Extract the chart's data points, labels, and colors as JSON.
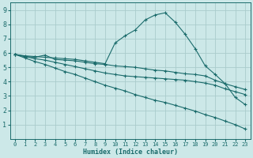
{
  "xlabel": "Humidex (Indice chaleur)",
  "bg_color": "#cce8e8",
  "grid_color": "#aacccc",
  "line_color": "#1a6b6b",
  "xlim": [
    -0.5,
    23.5
  ],
  "ylim": [
    0,
    9.5
  ],
  "xticks": [
    0,
    1,
    2,
    3,
    4,
    5,
    6,
    7,
    8,
    9,
    10,
    11,
    12,
    13,
    14,
    15,
    16,
    17,
    18,
    19,
    20,
    21,
    22,
    23
  ],
  "yticks": [
    1,
    2,
    3,
    4,
    5,
    6,
    7,
    8,
    9
  ],
  "series1_x": [
    0,
    1,
    2,
    3,
    4,
    5,
    6,
    7,
    8,
    9,
    10,
    11,
    12,
    13,
    14,
    15,
    16,
    17,
    18,
    19,
    20,
    21,
    22,
    23
  ],
  "series1_y": [
    5.9,
    5.75,
    5.7,
    5.85,
    5.55,
    5.5,
    5.45,
    5.35,
    5.25,
    5.2,
    5.1,
    5.05,
    5.0,
    4.9,
    4.8,
    4.75,
    4.65,
    4.55,
    4.5,
    4.4,
    4.1,
    3.85,
    3.65,
    3.45
  ],
  "series2_x": [
    0,
    1,
    2,
    3,
    4,
    5,
    6,
    7,
    8,
    9,
    10,
    11,
    12,
    13,
    14,
    15,
    16,
    17,
    18,
    19,
    20,
    21,
    22,
    23
  ],
  "series2_y": [
    5.9,
    5.75,
    5.6,
    5.5,
    5.35,
    5.2,
    5.05,
    4.9,
    4.75,
    4.6,
    4.5,
    4.4,
    4.35,
    4.3,
    4.25,
    4.2,
    4.15,
    4.1,
    4.0,
    3.9,
    3.75,
    3.5,
    3.3,
    3.1
  ],
  "series3_x": [
    0,
    1,
    2,
    3,
    4,
    5,
    6,
    7,
    8,
    9,
    10,
    11,
    12,
    13,
    14,
    15,
    16,
    17,
    18,
    19,
    20,
    21,
    22,
    23
  ],
  "series3_y": [
    5.9,
    5.65,
    5.4,
    5.2,
    4.95,
    4.7,
    4.5,
    4.25,
    4.0,
    3.75,
    3.55,
    3.35,
    3.1,
    2.9,
    2.7,
    2.55,
    2.35,
    2.15,
    1.95,
    1.7,
    1.5,
    1.25,
    1.0,
    0.7
  ],
  "series4_x": [
    0,
    1,
    2,
    3,
    4,
    5,
    6,
    7,
    8,
    9,
    10,
    11,
    12,
    13,
    14,
    15,
    16,
    17,
    18,
    19,
    20,
    21,
    22,
    23
  ],
  "series4_y": [
    5.9,
    5.8,
    5.75,
    5.7,
    5.65,
    5.6,
    5.55,
    5.45,
    5.35,
    5.25,
    6.7,
    7.2,
    7.6,
    8.3,
    8.65,
    8.8,
    8.15,
    7.3,
    6.3,
    5.1,
    4.5,
    3.85,
    2.9,
    2.4
  ]
}
